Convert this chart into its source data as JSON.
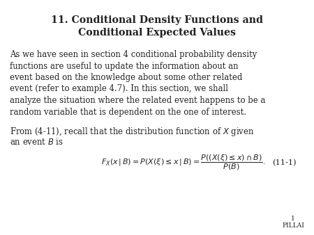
{
  "title_line1": "11. Conditional Density Functions and",
  "title_line2": "Conditional Expected Values",
  "body_lines": [
    "As we have seen in section 4 conditional probability density",
    "functions are useful to update the information about an",
    "event based on the knowledge about some other related",
    "event (refer to example 4.7). In this section, we shall",
    "analyze the situation where the related event happens to be a",
    "random variable that is dependent on the one of interest."
  ],
  "from_line1": "From (4-11), recall that the distribution function of $X$ given",
  "from_line2": "an event $B$ is",
  "equation": "$F_X(x\\,|\\,B) = P(X(\\xi) \\leq x\\,|\\,B) = \\dfrac{P((X(\\xi) \\leq x) \\cap B)}{P(B)}.$",
  "eq_label": "(11-1)",
  "page_number": "1",
  "author": "PILLAI",
  "bg_color": "#ffffff",
  "text_color": "#222222",
  "title_fontsize": 10.2,
  "body_fontsize": 8.4,
  "eq_fontsize": 8.0,
  "label_fontsize": 8.2,
  "footer_fontsize": 6.5
}
